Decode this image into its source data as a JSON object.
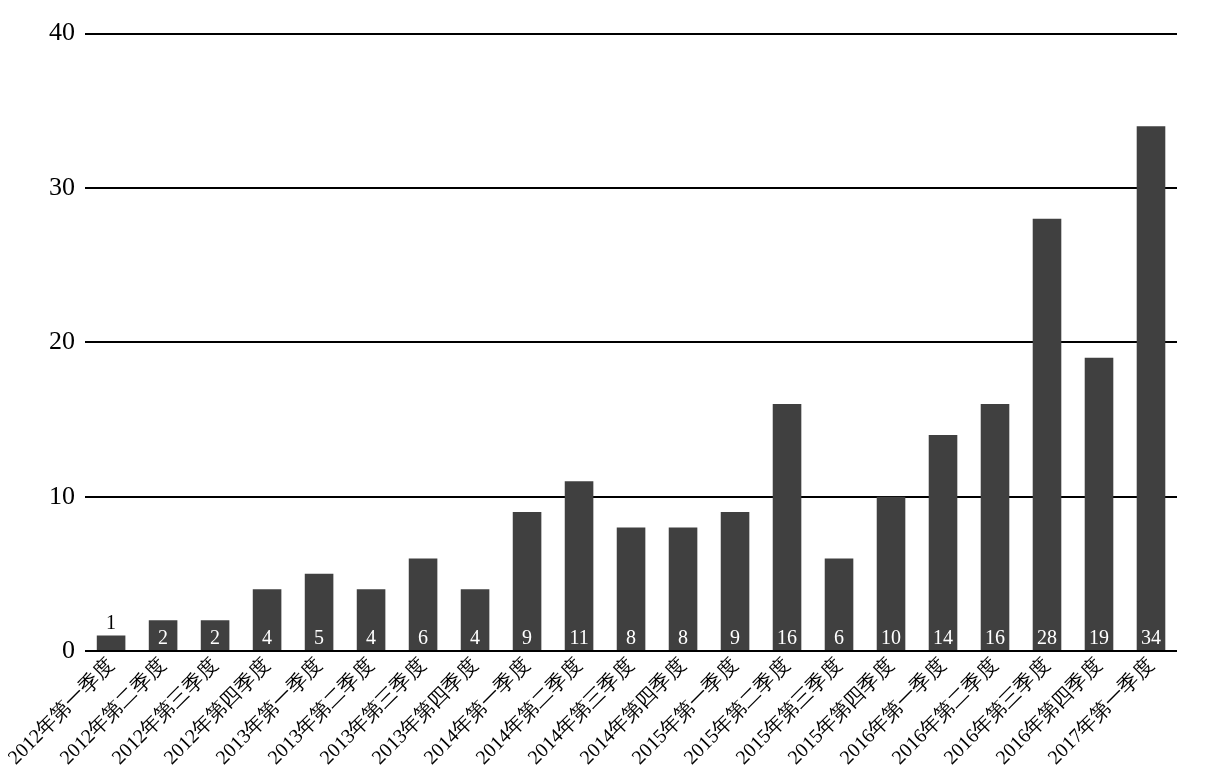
{
  "chart_data": {
    "type": "bar",
    "categories": [
      "2012年第一季度",
      "2012年第二季度",
      "2012年第三季度",
      "2012年第四季度",
      "2013年第一季度",
      "2013年第二季度",
      "2013年第三季度",
      "2013年第四季度",
      "2014年第一季度",
      "2014年第二季度",
      "2014年第三季度",
      "2014年第四季度",
      "2015年第一季度",
      "2015年第二季度",
      "2015年第三季度",
      "2015年第四季度",
      "2016年第一季度",
      "2016年第二季度",
      "2016年第三季度",
      "2016年第四季度",
      "2017年第一季度"
    ],
    "values": [
      1,
      2,
      2,
      4,
      5,
      4,
      6,
      4,
      9,
      11,
      8,
      8,
      9,
      16,
      6,
      10,
      14,
      16,
      28,
      19,
      34
    ],
    "color": "#404040",
    "ylim": [
      0,
      40
    ],
    "yticks": [
      0,
      10,
      20,
      30,
      40
    ],
    "grid": "y",
    "data_labels": true
  }
}
